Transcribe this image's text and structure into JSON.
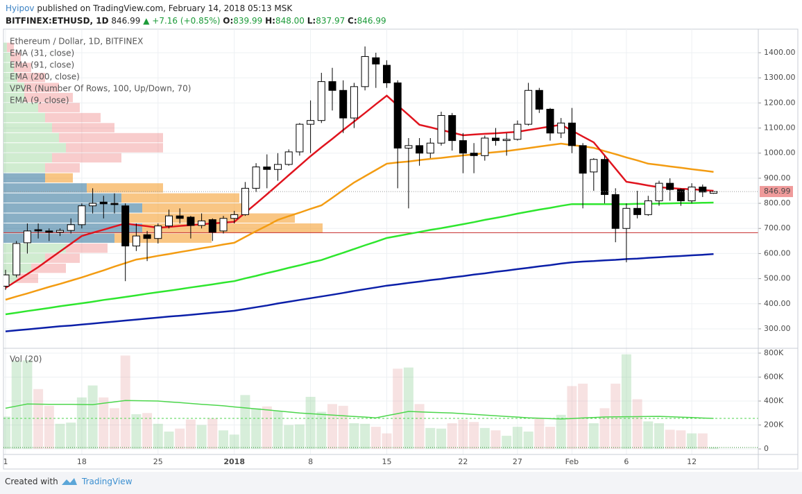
{
  "header": {
    "author": "Hyipov",
    "published": "published on TradingView.com, February 14, 2018 05:13 MSK",
    "symbol": "BITFINEX:ETHUSD, 1D",
    "last": "846.99",
    "change": "+7.16 (+0.85%)",
    "ohlc": [
      {
        "label": "O:",
        "value": "839.99"
      },
      {
        "label": "H:",
        "value": "848.00"
      },
      {
        "label": "L:",
        "value": "837.97"
      },
      {
        "label": "C:",
        "value": "846.99"
      }
    ]
  },
  "chart_data": {
    "type": "candlestick",
    "title": "Ethereum / Dollar, 1D, BITFINEX",
    "categories": [
      "1",
      null,
      null,
      null,
      null,
      null,
      null,
      "18",
      null,
      null,
      null,
      null,
      null,
      null,
      "25",
      null,
      null,
      null,
      null,
      null,
      null,
      "2018",
      null,
      null,
      null,
      null,
      null,
      null,
      "8",
      null,
      null,
      null,
      null,
      null,
      null,
      "15",
      null,
      null,
      null,
      null,
      null,
      null,
      "22",
      null,
      null,
      null,
      null,
      "27",
      null,
      null,
      null,
      null,
      "Feb",
      null,
      null,
      null,
      null,
      "6",
      null,
      null,
      null,
      null,
      null,
      "12",
      null,
      null
    ],
    "open": [
      470,
      515,
      643,
      695,
      690,
      685,
      692,
      715,
      790,
      805,
      800,
      790,
      630,
      675,
      660,
      710,
      750,
      745,
      712,
      735,
      690,
      740,
      755,
      860,
      945,
      935,
      955,
      1005,
      1115,
      1130,
      1285,
      1250,
      1140,
      1265,
      1380,
      1350,
      1280,
      1020,
      1030,
      1000,
      1040,
      1150,
      1050,
      1000,
      990,
      1060,
      1050,
      1055,
      1115,
      1250,
      1175,
      1080,
      1120,
      1030,
      925,
      975,
      835,
      700,
      780,
      755,
      810,
      880,
      855,
      810,
      865,
      839.99
    ],
    "high": [
      535,
      650,
      720,
      720,
      700,
      700,
      740,
      800,
      860,
      830,
      840,
      800,
      720,
      690,
      720,
      775,
      780,
      750,
      760,
      740,
      750,
      770,
      885,
      960,
      995,
      1000,
      1015,
      1120,
      1210,
      1320,
      1340,
      1290,
      1280,
      1425,
      1400,
      1370,
      1290,
      1060,
      1060,
      1060,
      1165,
      1160,
      1080,
      1040,
      1070,
      1100,
      1080,
      1130,
      1280,
      1260,
      1180,
      1140,
      1180,
      1040,
      980,
      990,
      860,
      800,
      850,
      830,
      890,
      900,
      860,
      880,
      875,
      848
    ],
    "low": [
      455,
      505,
      600,
      660,
      650,
      670,
      680,
      700,
      760,
      740,
      760,
      490,
      610,
      570,
      640,
      700,
      720,
      660,
      700,
      650,
      680,
      720,
      750,
      845,
      860,
      890,
      950,
      990,
      1000,
      1120,
      1170,
      1080,
      1100,
      1250,
      1260,
      1260,
      860,
      780,
      950,
      980,
      1030,
      1010,
      920,
      920,
      970,
      1030,
      990,
      1050,
      1110,
      1160,
      1050,
      1060,
      1000,
      780,
      850,
      800,
      645,
      565,
      740,
      750,
      790,
      810,
      790,
      800,
      825,
      837.97
    ],
    "close": [
      515,
      640,
      690,
      690,
      685,
      692,
      715,
      790,
      800,
      798,
      795,
      630,
      670,
      660,
      710,
      750,
      740,
      712,
      730,
      685,
      740,
      755,
      860,
      945,
      935,
      955,
      1005,
      1115,
      1130,
      1285,
      1250,
      1140,
      1265,
      1385,
      1355,
      1280,
      1020,
      1030,
      1000,
      1040,
      1150,
      1050,
      1000,
      990,
      1060,
      1050,
      1055,
      1115,
      1250,
      1175,
      1080,
      1120,
      1030,
      920,
      975,
      835,
      700,
      780,
      755,
      810,
      880,
      855,
      810,
      865,
      845,
      846.99
    ],
    "up_color": "#ffffff",
    "down_color": "#000000",
    "wick_color": "#000000",
    "ylim": [
      228,
      1494
    ],
    "yticks": [
      {
        "value": 300,
        "label": "300.00"
      },
      {
        "value": 400,
        "label": "400.00"
      },
      {
        "value": 500,
        "label": "500.00"
      },
      {
        "value": 600,
        "label": "600.00"
      },
      {
        "value": 700,
        "label": "700.00"
      },
      {
        "value": 800,
        "label": "800.00"
      },
      {
        "value": 900,
        "label": "900.00"
      },
      {
        "value": 1000,
        "label": "1000.00"
      },
      {
        "value": 1100,
        "label": "1100.00"
      },
      {
        "value": 1200,
        "label": "1200.00"
      },
      {
        "value": 1300,
        "label": "1300.00"
      },
      {
        "value": 1400,
        "label": "1400.00"
      }
    ],
    "grid": true,
    "ema": [
      {
        "name": "EMA (31, close)",
        "color": "#f39c12",
        "values": [
          416,
          429,
          441,
          454,
          467,
          479,
          492,
          505,
          519,
          533,
          548,
          562,
          576,
          583,
          591,
          598,
          606,
          613,
          621,
          628,
          636,
          643,
          666,
          689,
          711,
          734,
          749,
          763,
          778,
          792,
          822,
          853,
          883,
          908,
          933,
          958,
          963,
          967,
          972,
          977,
          981,
          986,
          991,
          995,
          1000,
          1004,
          1008,
          1014,
          1020,
          1026,
          1032,
          1038,
          1032,
          1027,
          1021,
          1008,
          996,
          983,
          971,
          958,
          953,
          947,
          942,
          936,
          931,
          925
        ]
      },
      {
        "name": "EMA (91, close)",
        "color": "#2ee62e",
        "values": [
          358,
          364,
          371,
          377,
          383,
          390,
          396,
          402,
          408,
          415,
          421,
          427,
          433,
          440,
          446,
          452,
          458,
          465,
          471,
          477,
          484,
          490,
          501,
          511,
          522,
          532,
          543,
          553,
          564,
          574,
          589,
          603,
          618,
          633,
          647,
          662,
          670,
          678,
          686,
          694,
          701,
          709,
          717,
          725,
          734,
          742,
          750,
          759,
          767,
          775,
          782,
          790,
          797,
          797,
          797,
          797,
          797,
          797,
          798,
          798,
          799,
          800,
          801,
          801,
          802,
          803
        ]
      },
      {
        "name": "EMA (200, close)",
        "color": "#0b1fa8",
        "values": [
          290,
          294,
          298,
          302,
          306,
          310,
          313,
          317,
          321,
          325,
          329,
          333,
          337,
          341,
          345,
          349,
          352,
          356,
          360,
          364,
          368,
          372,
          379,
          386,
          393,
          401,
          408,
          415,
          422,
          429,
          436,
          443,
          451,
          458,
          465,
          472,
          477,
          483,
          488,
          494,
          499,
          505,
          510,
          516,
          521,
          527,
          532,
          538,
          543,
          549,
          554,
          560,
          565,
          568,
          570,
          573,
          575,
          578,
          580,
          583,
          585,
          588,
          590,
          593,
          595,
          598
        ]
      },
      {
        "name": "EMA (9, close)",
        "color": "#e0141e",
        "values": [
          463,
          491,
          518,
          546,
          577,
          608,
          639,
          670,
          683,
          695,
          708,
          720,
          714,
          709,
          703,
          706,
          710,
          713,
          717,
          720,
          723,
          726,
          763,
          799,
          836,
          874,
          912,
          950,
          988,
          1023,
          1057,
          1092,
          1126,
          1160,
          1195,
          1229,
          1190,
          1152,
          1113,
          1103,
          1092,
          1082,
          1071,
          1074,
          1077,
          1079,
          1082,
          1085,
          1092,
          1099,
          1106,
          1113,
          1090,
          1066,
          1043,
          991,
          938,
          886,
          879,
          871,
          864,
          861,
          858,
          856,
          853,
          850
        ]
      }
    ],
    "last_price": {
      "value": 846.99,
      "label": "846.99"
    },
    "last_price_color": "#ef9a9a",
    "poc": 683,
    "poc_color": "#c62828",
    "vpvr": {
      "name": "VPVR (Number Of Rows, 100, Up/Down, 70)",
      "row_size": 40,
      "value_area": [
        640,
        920
      ],
      "up_color": "rgba(120,200,120,0.35)",
      "down_color": "rgba(235,110,110,0.35)",
      "va_up_color": "rgba(40,110,150,0.55)",
      "va_down_color": "rgba(245,160,50,0.6)",
      "rows": [
        {
          "price": 480,
          "up": 20,
          "down": 30
        },
        {
          "price": 520,
          "up": 40,
          "down": 50
        },
        {
          "price": 560,
          "up": 60,
          "down": 50
        },
        {
          "price": 600,
          "up": 90,
          "down": 60
        },
        {
          "price": 640,
          "up": 160,
          "down": 140
        },
        {
          "price": 680,
          "up": 200,
          "down": 260
        },
        {
          "price": 720,
          "up": 170,
          "down": 250
        },
        {
          "price": 760,
          "up": 200,
          "down": 150
        },
        {
          "price": 800,
          "up": 170,
          "down": 170
        },
        {
          "price": 840,
          "up": 120,
          "down": 110
        },
        {
          "price": 880,
          "up": 60,
          "down": 40
        },
        {
          "price": 920,
          "up": 60,
          "down": 50
        },
        {
          "price": 960,
          "up": 70,
          "down": 100
        },
        {
          "price": 1000,
          "up": 90,
          "down": 140
        },
        {
          "price": 1040,
          "up": 80,
          "down": 150
        },
        {
          "price": 1080,
          "up": 70,
          "down": 90
        },
        {
          "price": 1120,
          "up": 60,
          "down": 80
        },
        {
          "price": 1160,
          "up": 50,
          "down": 60
        },
        {
          "price": 1200,
          "up": 30,
          "down": 70
        },
        {
          "price": 1240,
          "up": 30,
          "down": 50
        },
        {
          "price": 1280,
          "up": 20,
          "down": 40
        },
        {
          "price": 1320,
          "up": 15,
          "down": 25
        },
        {
          "price": 1360,
          "up": 10,
          "down": 15
        },
        {
          "price": 1400,
          "up": 5,
          "down": 10
        }
      ]
    },
    "volume": {
      "name": "Vol (20)",
      "up_color": "rgba(140,205,150,0.35)",
      "down_color": "rgba(230,160,160,0.3)",
      "ma_color": "#4cd64c",
      "values": [
        270,
        735,
        740,
        500,
        360,
        210,
        220,
        430,
        530,
        430,
        340,
        780,
        290,
        300,
        210,
        145,
        170,
        245,
        200,
        255,
        155,
        120,
        450,
        340,
        355,
        315,
        200,
        205,
        435,
        310,
        375,
        360,
        215,
        210,
        185,
        130,
        670,
        680,
        375,
        175,
        170,
        215,
        245,
        225,
        175,
        155,
        110,
        185,
        145,
        255,
        185,
        285,
        525,
        545,
        215,
        340,
        545,
        790,
        415,
        230,
        215,
        160,
        155,
        130,
        130,
        15
      ],
      "ma": [
        340,
        358,
        375,
        374,
        373,
        373,
        372,
        371,
        370,
        382,
        393,
        405,
        403,
        402,
        400,
        393,
        387,
        380,
        373,
        367,
        360,
        351,
        343,
        334,
        326,
        317,
        309,
        300,
        294,
        289,
        283,
        277,
        271,
        266,
        260,
        278,
        295,
        313,
        310,
        306,
        303,
        300,
        294,
        289,
        283,
        277,
        271,
        266,
        260,
        257,
        253,
        250,
        254,
        259,
        263,
        267,
        268,
        269,
        270,
        271,
        272,
        269,
        265,
        262,
        258,
        255
      ],
      "ylim": [
        -46,
        823
      ],
      "yticks": [
        0,
        {
          "value": 200,
          "label": "200K"
        },
        {
          "value": 400,
          "label": "400K"
        },
        {
          "value": 600,
          "label": "600K"
        },
        {
          "value": 800,
          "label": "800K"
        }
      ]
    }
  },
  "footer": {
    "created": "Created with",
    "brand": "TradingView"
  }
}
